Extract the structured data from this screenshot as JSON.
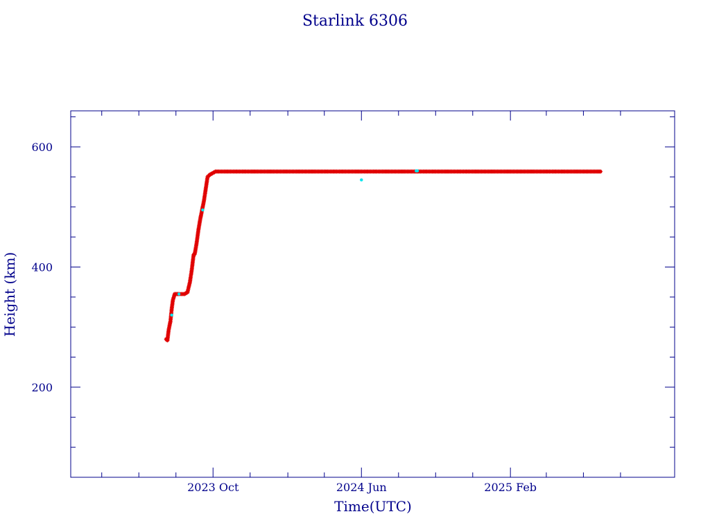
{
  "chart_data": {
    "type": "scatter",
    "title": "Starlink 6306",
    "xlabel": "Time(UTC)",
    "ylabel": "Height (km)",
    "xlim": [
      "2023-02-09",
      "2025-10-29"
    ],
    "ylim": [
      50,
      660
    ],
    "x_ticks": [
      {
        "date": "2023-10-01",
        "label": "2023 Oct"
      },
      {
        "date": "2024-06-01",
        "label": "2024 Jun"
      },
      {
        "date": "2025-02-01",
        "label": "2025 Feb"
      }
    ],
    "x_minor_ticks": [
      "2023-04-01",
      "2023-06-01",
      "2023-08-01",
      "2023-12-01",
      "2024-02-01",
      "2024-04-01",
      "2024-08-01",
      "2024-10-01",
      "2024-12-01",
      "2025-04-01",
      "2025-06-01",
      "2025-08-01"
    ],
    "y_ticks": [
      200,
      400,
      600
    ],
    "y_minor_step": 50,
    "grid": false,
    "colors": {
      "primary": "#e00000",
      "secondary": "#00e5ee",
      "axis": "#00008b"
    },
    "series": [
      {
        "color": "#e00000",
        "marker": "star",
        "x": [
          "2023-07-16",
          "2023-07-18",
          "2023-07-20",
          "2023-07-23",
          "2023-07-25",
          "2023-07-27",
          "2023-07-30",
          "2023-08-01",
          "2023-08-05",
          "2023-08-10",
          "2023-08-15",
          "2023-08-20",
          "2023-08-24",
          "2023-08-27",
          "2023-08-30",
          "2023-09-01",
          "2023-09-04",
          "2023-09-07",
          "2023-09-10",
          "2023-09-13",
          "2023-09-16",
          "2023-09-19",
          "2023-09-22",
          "2023-09-25",
          "2023-09-28",
          "2023-10-05",
          "2023-10-15",
          "2023-11-01",
          "2023-12-01",
          "2024-01-01",
          "2024-02-01",
          "2024-03-01",
          "2024-04-01",
          "2024-05-01",
          "2024-06-01",
          "2024-07-01",
          "2024-08-01",
          "2024-09-01",
          "2024-10-01",
          "2024-11-01",
          "2024-12-01",
          "2025-01-01",
          "2025-02-01",
          "2025-03-01",
          "2025-04-01",
          "2025-05-01",
          "2025-06-01",
          "2025-06-29"
        ],
        "y": [
          280,
          278,
          295,
          310,
          330,
          345,
          355,
          355,
          355,
          355,
          355,
          358,
          375,
          395,
          420,
          422,
          440,
          462,
          480,
          495,
          510,
          530,
          550,
          553,
          555,
          559,
          559,
          559,
          559,
          559,
          559,
          559,
          559,
          559,
          559,
          559,
          559,
          559,
          559,
          559,
          559,
          559,
          559,
          559,
          559,
          559,
          559,
          559
        ]
      },
      {
        "color": "#00e5ee",
        "marker": "dot",
        "x": [
          "2023-07-25",
          "2023-08-06",
          "2023-09-14",
          "2024-06-01",
          "2024-08-30",
          "2024-09-01"
        ],
        "y": [
          320,
          355,
          495,
          545,
          560,
          560
        ]
      }
    ]
  }
}
